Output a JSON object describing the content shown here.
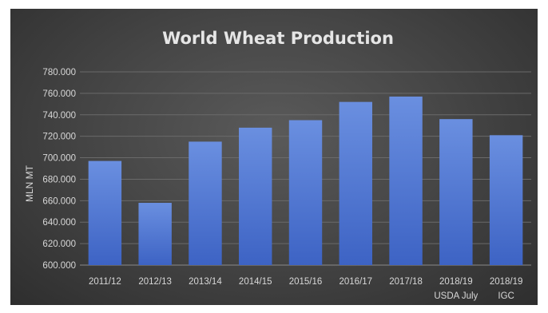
{
  "chart_data": {
    "type": "bar",
    "title": "World Wheat Production",
    "xlabel": "",
    "ylabel": "MLN MT",
    "ylim": [
      600,
      780
    ],
    "y_ticks": [
      "600.000",
      "620.000",
      "640.000",
      "660.000",
      "680.000",
      "700.000",
      "720.000",
      "740.000",
      "760.000",
      "780.000"
    ],
    "y_tick_values": [
      600,
      620,
      640,
      660,
      680,
      700,
      720,
      740,
      760,
      780
    ],
    "categories": [
      [
        "2011/12"
      ],
      [
        "2012/13"
      ],
      [
        "2013/14"
      ],
      [
        "2014/15"
      ],
      [
        "2015/16"
      ],
      [
        "2016/17"
      ],
      [
        "2017/18"
      ],
      [
        "2018/19",
        "USDA July"
      ],
      [
        "2018/19",
        "IGC"
      ]
    ],
    "values": [
      697,
      658,
      715,
      728,
      735,
      752,
      757,
      736,
      721
    ],
    "grid": true,
    "legend": "none",
    "colors": {
      "bar_top": "#6a8fe0",
      "bar_bottom": "#3d63c4",
      "background": "#444444"
    }
  }
}
